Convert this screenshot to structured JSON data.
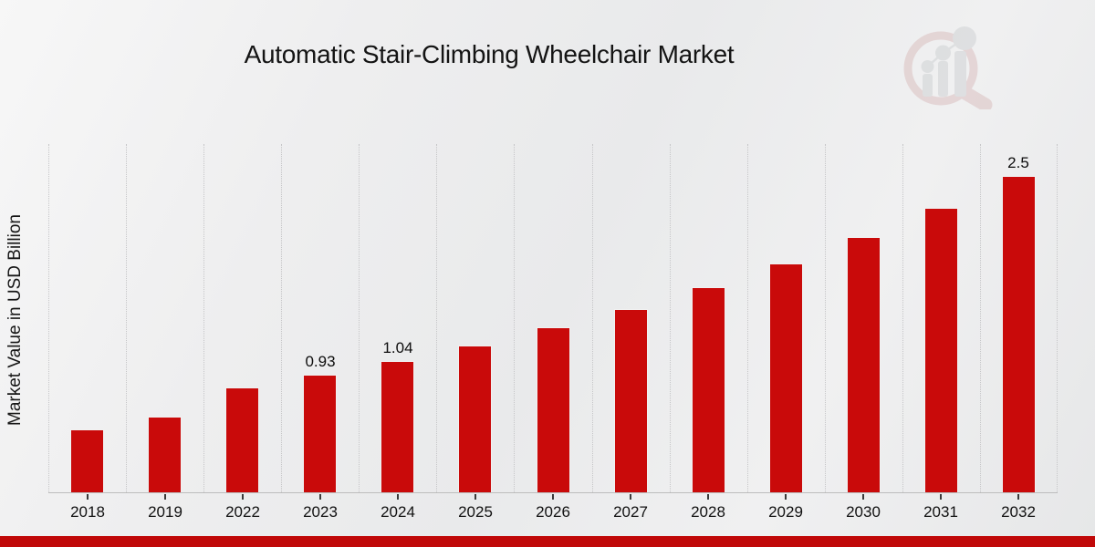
{
  "header": {
    "title": "Automatic Stair-Climbing Wheelchair Market"
  },
  "branding": {
    "logo_icon": "magnifier-bar-chart-logo",
    "logo_ring_color": "#d9bcbc",
    "logo_gray_color": "#cdd0d2"
  },
  "footer": {
    "accent_bar_color": "#c00808"
  },
  "chart_data": {
    "type": "bar",
    "title": "Automatic Stair-Climbing Wheelchair Market",
    "xlabel": "",
    "ylabel": "Market Value in USD Billion",
    "categories": [
      "2018",
      "2019",
      "2022",
      "2023",
      "2024",
      "2025",
      "2026",
      "2027",
      "2028",
      "2029",
      "2030",
      "2031",
      "2032"
    ],
    "values": [
      0.5,
      0.6,
      0.83,
      0.93,
      1.04,
      1.16,
      1.3,
      1.45,
      1.62,
      1.81,
      2.02,
      2.25,
      2.5
    ],
    "bar_labels": [
      "",
      "",
      "",
      "0.93",
      "1.04",
      "",
      "",
      "",
      "",
      "",
      "",
      "",
      "2.5"
    ],
    "bar_color": "#c90a0a",
    "ylim": [
      0,
      2.78
    ],
    "grid": "vertical-dotted",
    "legend": "none"
  }
}
